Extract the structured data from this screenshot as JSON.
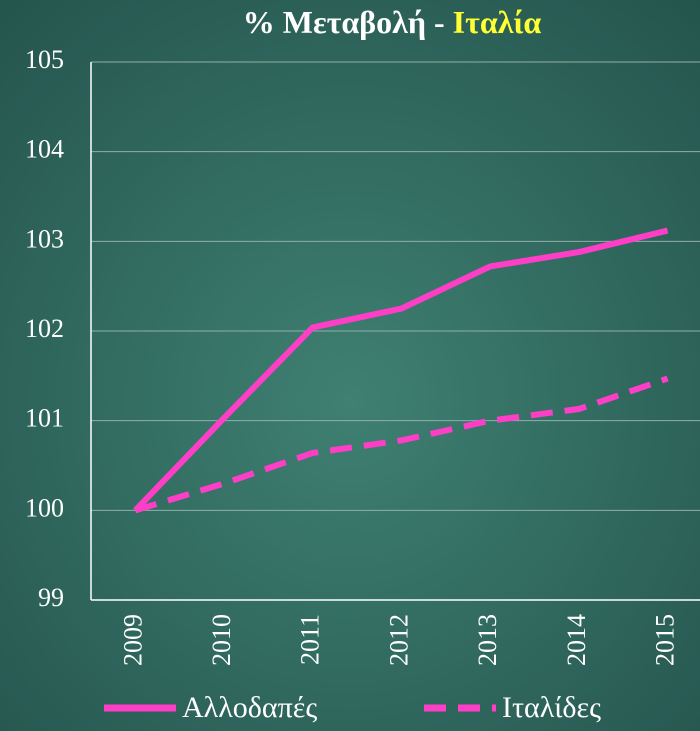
{
  "chart_data": {
    "type": "line",
    "title_parts": [
      "% Μεταβολή -",
      "Ιταλία"
    ],
    "title_colors": [
      "#ffffff",
      "#ffff33"
    ],
    "categories": [
      "2009",
      "2010",
      "2011",
      "2012",
      "2013",
      "2014",
      "2015"
    ],
    "series": [
      {
        "name": "Αλλοδαπές",
        "color": "#ff3ec8",
        "style": "solid",
        "values": [
          100,
          101.03,
          102.04,
          102.25,
          102.72,
          102.88,
          103.12
        ]
      },
      {
        "name": "Ιταλίδες",
        "color": "#ff3ec8",
        "style": "dashed",
        "values": [
          100,
          100.3,
          100.64,
          100.78,
          101.0,
          101.13,
          101.47
        ]
      }
    ],
    "ylim": [
      99,
      105
    ],
    "yticks": [
      99,
      100,
      101,
      102,
      103,
      104,
      105
    ],
    "grid": true,
    "legend": "bottom"
  }
}
